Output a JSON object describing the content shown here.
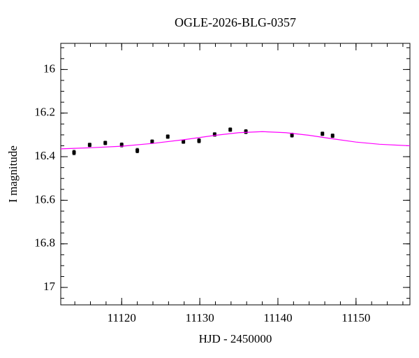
{
  "chart_data": {
    "type": "scatter",
    "title": "OGLE-2026-BLG-0357",
    "x_label": "HJD - 2450000",
    "y_label": "I magnitude",
    "xlim": [
      11112.2,
      11156.9
    ],
    "ylim": [
      15.88,
      17.08
    ],
    "y_inverted": true,
    "xticks": [
      11120,
      11130,
      11140,
      11150
    ],
    "yticks": [
      16,
      16.2,
      16.4,
      16.6,
      16.8,
      17
    ],
    "xminor": 2,
    "yminor": 0.05,
    "mirror_ticks": true,
    "series": [
      {
        "type": "scatter",
        "color": "#000000",
        "x": [
          11113.9,
          11115.9,
          11117.9,
          11120.0,
          11122.0,
          11123.9,
          11125.9,
          11127.9,
          11129.9,
          11131.9,
          11133.9,
          11135.9,
          11141.8,
          11145.7,
          11147.0
        ],
        "values": [
          16.381,
          16.346,
          16.337,
          16.346,
          16.372,
          16.331,
          16.308,
          16.331,
          16.327,
          16.298,
          16.276,
          16.285,
          16.301,
          16.295,
          16.304
        ],
        "errors": [
          0.01,
          0.008,
          0.008,
          0.009,
          0.01,
          0.008,
          0.008,
          0.008,
          0.009,
          0.008,
          0.008,
          0.009,
          0.009,
          0.008,
          0.008
        ]
      },
      {
        "type": "line",
        "color": "#ff00ff",
        "x": [
          11112.2,
          11116,
          11120,
          11124,
          11128,
          11132,
          11135,
          11138,
          11141,
          11144,
          11147,
          11150,
          11153,
          11156.9
        ],
        "values": [
          16.364,
          16.359,
          16.352,
          16.339,
          16.322,
          16.302,
          16.29,
          16.285,
          16.29,
          16.302,
          16.318,
          16.333,
          16.343,
          16.35
        ]
      }
    ]
  }
}
